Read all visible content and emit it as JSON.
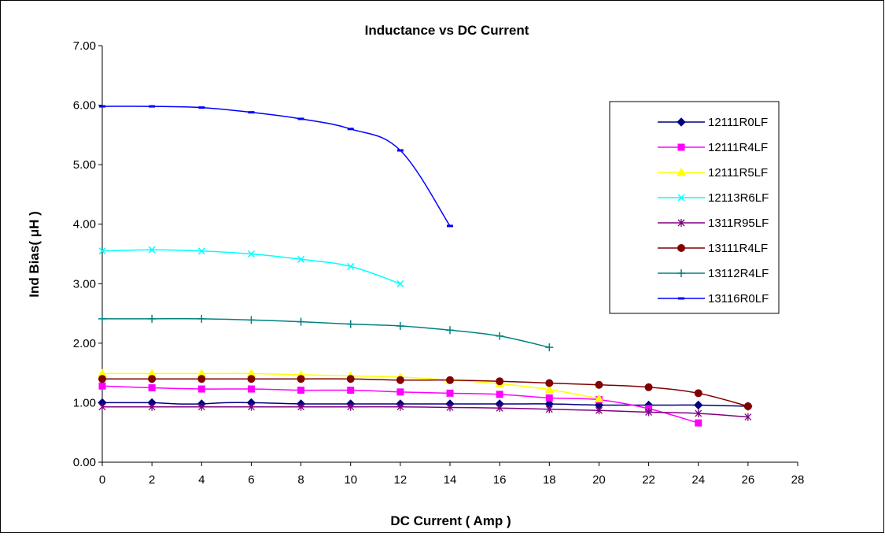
{
  "chart_data": {
    "type": "line",
    "title": "Inductance vs DC Current",
    "xlabel": "DC Current ( Amp )",
    "ylabel": "Ind Bias( μH )",
    "xlim": [
      0,
      28
    ],
    "ylim": [
      0,
      7
    ],
    "xticks": [
      "0",
      "2",
      "4",
      "6",
      "8",
      "10",
      "12",
      "14",
      "16",
      "18",
      "20",
      "22",
      "24",
      "26",
      "28"
    ],
    "yticks": [
      "0.00",
      "1.00",
      "2.00",
      "3.00",
      "4.00",
      "5.00",
      "6.00",
      "7.00"
    ],
    "grid": false,
    "legend_position": "right",
    "series": [
      {
        "name": "12111R0LF",
        "color": "#000080",
        "marker": "diamond",
        "x": [
          0,
          1,
          2,
          3,
          4,
          5,
          6,
          7,
          8,
          9,
          10,
          11,
          12,
          13,
          14,
          15,
          16,
          17,
          18,
          19,
          20,
          21,
          22,
          23,
          24,
          25,
          26
        ],
        "y": [
          1.0,
          1.0,
          1.0,
          0.98,
          0.98,
          1.0,
          1.0,
          0.99,
          0.98,
          0.98,
          0.98,
          0.98,
          0.98,
          0.98,
          0.98,
          0.98,
          0.98,
          0.98,
          0.98,
          0.97,
          0.96,
          0.96,
          0.96,
          0.96,
          0.96,
          0.95,
          0.94
        ]
      },
      {
        "name": "12111R4LF",
        "color": "#ff00ff",
        "marker": "square",
        "x": [
          0,
          2,
          4,
          6,
          8,
          10,
          12,
          14,
          16,
          18,
          20,
          22,
          24
        ],
        "y": [
          1.28,
          1.25,
          1.23,
          1.23,
          1.21,
          1.21,
          1.18,
          1.16,
          1.14,
          1.08,
          1.05,
          0.9,
          0.66
        ]
      },
      {
        "name": "12111R5LF",
        "color": "#ffff00",
        "marker": "triangle",
        "x": [
          0,
          2,
          4,
          6,
          8,
          10,
          12,
          14,
          16,
          18,
          20
        ],
        "y": [
          1.49,
          1.49,
          1.49,
          1.49,
          1.47,
          1.45,
          1.43,
          1.38,
          1.32,
          1.22,
          1.07
        ]
      },
      {
        "name": "12113R6LF",
        "color": "#00ffff",
        "marker": "x",
        "x": [
          0,
          2,
          4,
          6,
          8,
          10,
          12
        ],
        "y": [
          3.55,
          3.57,
          3.55,
          3.5,
          3.41,
          3.29,
          3.0
        ]
      },
      {
        "name": "1311R95LF",
        "color": "#800080",
        "marker": "star",
        "x": [
          0,
          2,
          4,
          6,
          8,
          10,
          12,
          14,
          16,
          18,
          20,
          22,
          24,
          26
        ],
        "y": [
          0.93,
          0.93,
          0.93,
          0.93,
          0.93,
          0.93,
          0.93,
          0.92,
          0.91,
          0.89,
          0.87,
          0.84,
          0.82,
          0.76
        ]
      },
      {
        "name": "13111R4LF",
        "color": "#800000",
        "marker": "circle",
        "x": [
          0,
          2,
          4,
          6,
          8,
          10,
          12,
          14,
          16,
          18,
          20,
          22,
          24,
          26
        ],
        "y": [
          1.4,
          1.4,
          1.4,
          1.4,
          1.4,
          1.4,
          1.38,
          1.38,
          1.36,
          1.33,
          1.3,
          1.26,
          1.16,
          0.94
        ]
      },
      {
        "name": "13112R4LF",
        "color": "#008080",
        "marker": "plus",
        "x": [
          0,
          2,
          4,
          6,
          8,
          10,
          12,
          14,
          16,
          18
        ],
        "y": [
          2.41,
          2.41,
          2.41,
          2.39,
          2.36,
          2.32,
          2.29,
          2.22,
          2.12,
          1.93
        ]
      },
      {
        "name": "13116R0LF",
        "color": "#0000ff",
        "marker": "dash",
        "x": [
          0,
          2,
          4,
          6,
          8,
          10,
          12,
          14
        ],
        "y": [
          5.98,
          5.98,
          5.96,
          5.88,
          5.77,
          5.6,
          5.24,
          3.97
        ]
      }
    ]
  }
}
